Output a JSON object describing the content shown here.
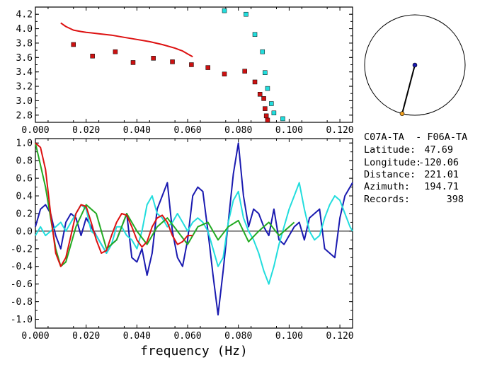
{
  "chart_data": [
    {
      "type": "scatter",
      "xlim": [
        0.0,
        0.125
      ],
      "ylim": [
        2.7,
        4.3
      ],
      "x_ticks": [
        "0.000",
        "0.020",
        "0.040",
        "0.060",
        "0.080",
        "0.100",
        "0.120"
      ],
      "y_ticks": [
        "2.8",
        "3.0",
        "3.2",
        "3.4",
        "3.6",
        "3.8",
        "4.0",
        "4.2"
      ],
      "grid": false,
      "series": [
        {
          "kind": "line",
          "color": "#dd1111",
          "x": [
            0.01,
            0.012,
            0.015,
            0.018,
            0.02,
            0.025,
            0.03,
            0.035,
            0.04,
            0.045,
            0.05,
            0.055,
            0.058,
            0.06,
            0.062
          ],
          "y": [
            4.08,
            4.03,
            3.98,
            3.96,
            3.95,
            3.93,
            3.91,
            3.88,
            3.85,
            3.82,
            3.78,
            3.73,
            3.69,
            3.65,
            3.61
          ]
        },
        {
          "kind": "markers",
          "color": "#cc1111",
          "x": [
            0.015,
            0.0225,
            0.0315,
            0.0385,
            0.0465,
            0.054,
            0.0615,
            0.068,
            0.0745,
            0.0825,
            0.0865,
            0.0885,
            0.09,
            0.0905,
            0.091,
            0.0915
          ],
          "y": [
            3.78,
            3.62,
            3.68,
            3.53,
            3.59,
            3.54,
            3.5,
            3.46,
            3.37,
            3.41,
            3.26,
            3.09,
            3.03,
            2.89,
            2.79,
            2.73
          ]
        },
        {
          "kind": "markers",
          "color": "#22dddd",
          "x": [
            0.0745,
            0.083,
            0.0865,
            0.0895,
            0.0905,
            0.0915,
            0.093,
            0.094,
            0.0975
          ],
          "y": [
            4.25,
            4.2,
            3.92,
            3.68,
            3.39,
            3.17,
            2.96,
            2.83,
            2.75
          ]
        }
      ]
    },
    {
      "type": "line",
      "xlabel": "frequency (Hz)",
      "xlim": [
        0.0,
        0.125
      ],
      "ylim": [
        -1.1,
        1.05
      ],
      "x_ticks": [
        "0.000",
        "0.020",
        "0.040",
        "0.060",
        "0.080",
        "0.100",
        "0.120"
      ],
      "y_ticks": [
        "1.0",
        "0.8",
        "0.6",
        "0.4",
        "0.2",
        "0.0",
        "-0.2",
        "-0.4",
        "-0.6",
        "-0.8",
        "-1.0"
      ],
      "grid": false,
      "series": [
        {
          "color": "#1a1ab0",
          "x": [
            0,
            0.002,
            0.004,
            0.006,
            0.008,
            0.01,
            0.012,
            0.014,
            0.016,
            0.018,
            0.02,
            0.022,
            0.024,
            0.026,
            0.028,
            0.03,
            0.032,
            0.034,
            0.036,
            0.038,
            0.04,
            0.042,
            0.044,
            0.046,
            0.048,
            0.05,
            0.052,
            0.054,
            0.056,
            0.058,
            0.06,
            0.062,
            0.064,
            0.066,
            0.068,
            0.07,
            0.072,
            0.074,
            0.076,
            0.078,
            0.08,
            0.082,
            0.084,
            0.086,
            0.088,
            0.09,
            0.092,
            0.094,
            0.096,
            0.098,
            0.1,
            0.102,
            0.104,
            0.106,
            0.108,
            0.11,
            0.112,
            0.114,
            0.116,
            0.118,
            0.12,
            0.122,
            0.124,
            0.125
          ],
          "y": [
            0.05,
            0.25,
            0.3,
            0.2,
            -0.05,
            -0.2,
            0.1,
            0.2,
            0.15,
            -0.05,
            0.15,
            0.05,
            -0.05,
            -0.15,
            -0.25,
            -0.15,
            -0.1,
            0.05,
            0.2,
            -0.3,
            -0.35,
            -0.2,
            -0.5,
            -0.25,
            0.25,
            0.4,
            0.55,
            0.0,
            -0.3,
            -0.4,
            -0.1,
            0.4,
            0.5,
            0.45,
            0.0,
            -0.5,
            -0.95,
            -0.45,
            0.1,
            0.65,
            1.0,
            0.4,
            0.05,
            0.25,
            0.2,
            0.05,
            -0.05,
            0.25,
            -0.1,
            -0.15,
            -0.05,
            0.05,
            0.1,
            -0.1,
            0.15,
            0.2,
            0.25,
            -0.2,
            -0.25,
            -0.3,
            0.15,
            0.4,
            0.5,
            0.55
          ]
        },
        {
          "color": "#22dddd",
          "x": [
            0,
            0.002,
            0.004,
            0.006,
            0.008,
            0.01,
            0.012,
            0.014,
            0.016,
            0.018,
            0.02,
            0.022,
            0.024,
            0.026,
            0.028,
            0.03,
            0.032,
            0.034,
            0.036,
            0.038,
            0.04,
            0.042,
            0.044,
            0.046,
            0.048,
            0.05,
            0.052,
            0.054,
            0.056,
            0.058,
            0.06,
            0.062,
            0.064,
            0.066,
            0.068,
            0.07,
            0.072,
            0.074,
            0.076,
            0.078,
            0.08,
            0.082,
            0.084,
            0.086,
            0.088,
            0.09,
            0.092,
            0.094,
            0.096,
            0.098,
            0.1,
            0.102,
            0.104,
            0.106,
            0.108,
            0.11,
            0.112,
            0.114,
            0.116,
            0.118,
            0.12,
            0.122,
            0.124,
            0.125
          ],
          "y": [
            -0.05,
            0.05,
            -0.05,
            0.0,
            0.05,
            0.1,
            0.0,
            0.1,
            0.2,
            0.3,
            0.25,
            0.0,
            -0.05,
            -0.15,
            -0.25,
            -0.15,
            0.05,
            0.05,
            -0.05,
            -0.1,
            -0.2,
            0.0,
            0.3,
            0.4,
            0.2,
            0.15,
            0.05,
            0.1,
            0.2,
            0.1,
            0.0,
            0.1,
            0.15,
            0.1,
            0.0,
            -0.2,
            -0.4,
            -0.3,
            0.1,
            0.35,
            0.45,
            0.15,
            0.0,
            -0.1,
            -0.25,
            -0.45,
            -0.6,
            -0.4,
            -0.15,
            0.05,
            0.25,
            0.4,
            0.55,
            0.25,
            0.0,
            -0.1,
            -0.05,
            0.15,
            0.3,
            0.4,
            0.35,
            0.2,
            0.05,
            0.0
          ]
        },
        {
          "color": "#22aa22",
          "x": [
            0,
            0.004,
            0.008,
            0.01,
            0.012,
            0.016,
            0.02,
            0.024,
            0.028,
            0.032,
            0.036,
            0.04,
            0.044,
            0.048,
            0.052,
            0.056,
            0.06,
            0.064,
            0.068,
            0.072,
            0.076,
            0.08,
            0.084,
            0.088,
            0.092,
            0.096,
            0.1,
            0.102
          ],
          "y": [
            1.0,
            0.5,
            -0.2,
            -0.4,
            -0.35,
            0.05,
            0.3,
            0.2,
            -0.2,
            -0.1,
            0.2,
            0.0,
            -0.15,
            0.05,
            0.15,
            0.0,
            -0.15,
            0.05,
            0.1,
            -0.1,
            0.05,
            0.12,
            -0.12,
            0.0,
            0.1,
            -0.05,
            0.05,
            0.1
          ]
        },
        {
          "color": "#dd1111",
          "x": [
            0,
            0.002,
            0.004,
            0.006,
            0.008,
            0.01,
            0.012,
            0.014,
            0.016,
            0.018,
            0.02,
            0.022,
            0.024,
            0.026,
            0.028,
            0.03,
            0.032,
            0.034,
            0.036,
            0.038,
            0.04,
            0.042,
            0.044,
            0.046,
            0.048,
            0.05,
            0.052,
            0.054,
            0.056,
            0.058,
            0.06,
            0.062
          ],
          "y": [
            1.0,
            0.95,
            0.7,
            0.2,
            -0.25,
            -0.4,
            -0.3,
            -0.05,
            0.2,
            0.3,
            0.28,
            0.1,
            -0.1,
            -0.25,
            -0.22,
            -0.05,
            0.1,
            0.2,
            0.18,
            0.05,
            -0.1,
            -0.18,
            -0.12,
            0.05,
            0.15,
            0.18,
            0.1,
            -0.05,
            -0.15,
            -0.12,
            -0.05,
            -0.05
          ]
        }
      ]
    },
    {
      "type": "other",
      "azimuth": 194.71
    }
  ],
  "info": {
    "pair": "C07A-TA  - F06A-TA",
    "latitude_label": "Latitude:",
    "latitude_value": "47.69",
    "longitude_label": "Longitude:",
    "longitude_value": "-120.06",
    "distance_label": "Distance:",
    "distance_value": "221.01",
    "azimuth_label": "Azimuth:",
    "azimuth_value": "194.71",
    "records_label": "Records:",
    "records_value": "398"
  }
}
